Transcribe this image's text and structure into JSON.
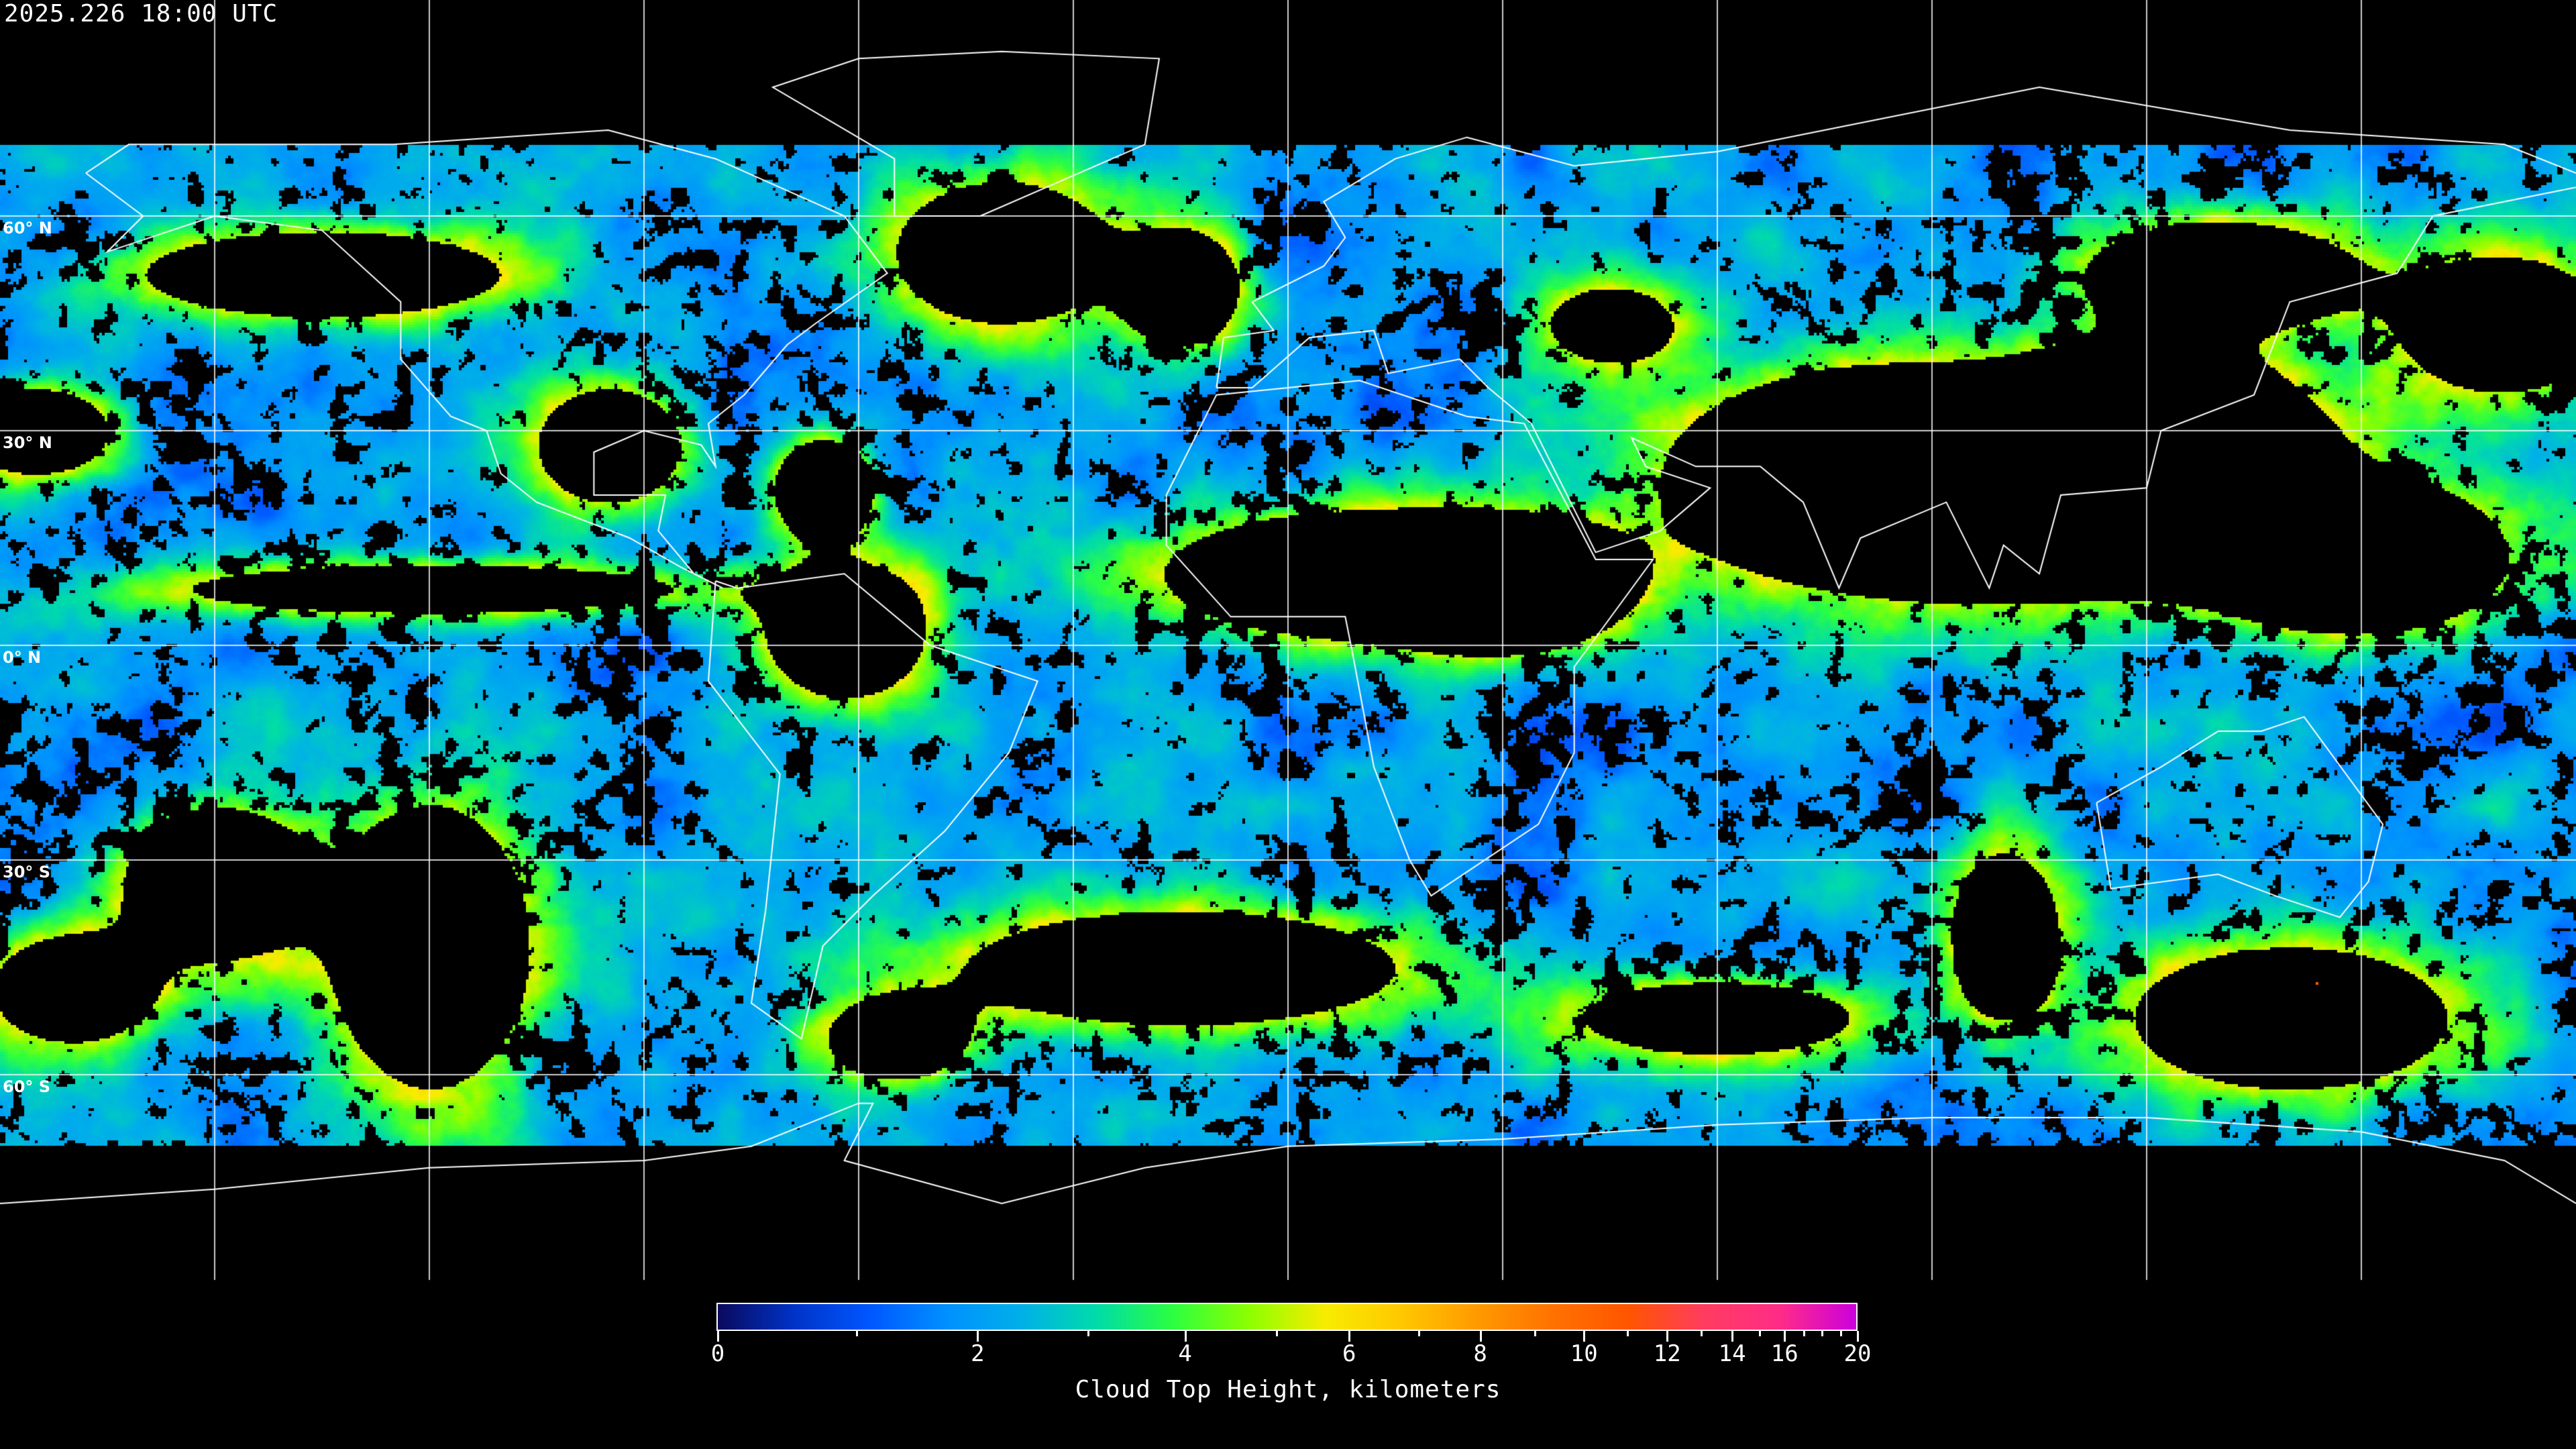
{
  "header": {
    "timestamp": "2025.226 18:00 UTC"
  },
  "map": {
    "projection": "equirectangular",
    "lon_range": [
      -180,
      180
    ],
    "lat_range": [
      -90,
      90
    ],
    "gridline_spacing_deg": 30,
    "lat_labels": [
      {
        "lat": 60,
        "label": "60° N"
      },
      {
        "lat": 30,
        "label": "30° N"
      },
      {
        "lat": 0,
        "label": "0° N"
      },
      {
        "lat": -30,
        "label": "30° S"
      },
      {
        "lat": -60,
        "label": "60° S"
      }
    ],
    "gridline_color": "#ffffff",
    "coastline_color": "#ffffff",
    "no_data_color": "#000000"
  },
  "colorbar": {
    "title": "Cloud Top Height, kilometers",
    "range": [
      0,
      20
    ],
    "major_ticks": [
      {
        "value": 0,
        "label": "0"
      },
      {
        "value": 2,
        "label": "2"
      },
      {
        "value": 4,
        "label": "4"
      },
      {
        "value": 6,
        "label": "6"
      },
      {
        "value": 8,
        "label": "8"
      },
      {
        "value": 10,
        "label": "10"
      },
      {
        "value": 12,
        "label": "12"
      },
      {
        "value": 14,
        "label": "14"
      },
      {
        "value": 16,
        "label": "16"
      },
      {
        "value": 20,
        "label": "20"
      }
    ],
    "minor_ticks": [
      1,
      3,
      5,
      7,
      9,
      11,
      13,
      15,
      17,
      18,
      19
    ],
    "colors": [
      "#0a0a5e",
      "#0033c8",
      "#0057ff",
      "#0090ff",
      "#00b0e8",
      "#00dca8",
      "#2cff40",
      "#8cff00",
      "#f8ec00",
      "#ffc800",
      "#ff9a00",
      "#ff7200",
      "#ff5500",
      "#ff3c60",
      "#ff2c88",
      "#cc00dd"
    ]
  }
}
